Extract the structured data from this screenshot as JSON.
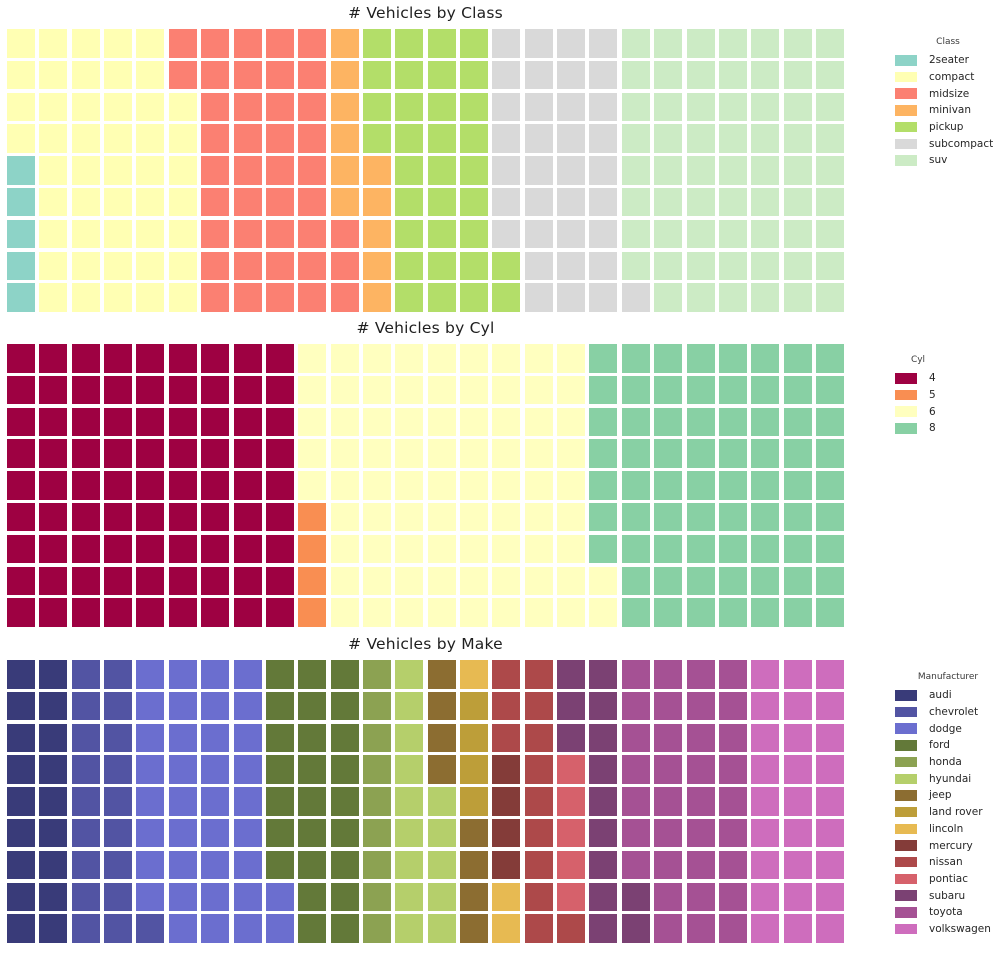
{
  "figure": {
    "background_color": "#ffffff",
    "unit": "1 square = 1 vehicle",
    "grid_rows": 9,
    "grid_cols": 26,
    "total_vehicles": 234,
    "fill_order": "column-major, bottom-to-top, starting at bottom-left"
  },
  "chart_data": [
    {
      "type": "waffle",
      "title": "# Vehicles by Class",
      "legend_title": "Class",
      "legend_position": "right",
      "rows": 9,
      "cols": 26,
      "categories": [
        "2seater",
        "compact",
        "midsize",
        "minivan",
        "pickup",
        "subcompact",
        "suv"
      ],
      "values": [
        5,
        47,
        41,
        11,
        33,
        35,
        62
      ],
      "colors": [
        "#8dd3c7",
        "#ffffb3",
        "#fb8072",
        "#fdb462",
        "#b3de69",
        "#d9d9d9",
        "#ccebc5"
      ]
    },
    {
      "type": "waffle",
      "title": "# Vehicles by Cyl",
      "legend_title": "Cyl",
      "legend_position": "right",
      "rows": 9,
      "cols": 26,
      "categories": [
        "4",
        "5",
        "6",
        "8"
      ],
      "values": [
        81,
        4,
        79,
        70
      ],
      "colors": [
        "#9e0142",
        "#f98e52",
        "#ffffbf",
        "#88d0a4"
      ]
    },
    {
      "type": "waffle",
      "title": "# Vehicles by Make",
      "legend_title": "Manufacturer",
      "legend_position": "right",
      "rows": 9,
      "cols": 26,
      "categories": [
        "audi",
        "chevrolet",
        "dodge",
        "ford",
        "honda",
        "hyundai",
        "jeep",
        "land rover",
        "lincoln",
        "mercury",
        "nissan",
        "pontiac",
        "subaru",
        "toyota",
        "volkswagen"
      ],
      "values": [
        18,
        19,
        37,
        25,
        9,
        14,
        8,
        4,
        3,
        4,
        13,
        5,
        14,
        34,
        27
      ],
      "colors": [
        "#393b79",
        "#5254a3",
        "#6b6ecf",
        "#637939",
        "#8ca252",
        "#b5cf6b",
        "#8c6d31",
        "#bd9e39",
        "#e7ba52",
        "#843c39",
        "#ad494a",
        "#d6616b",
        "#7b4173",
        "#a55194",
        "#ce6dbd"
      ]
    }
  ]
}
